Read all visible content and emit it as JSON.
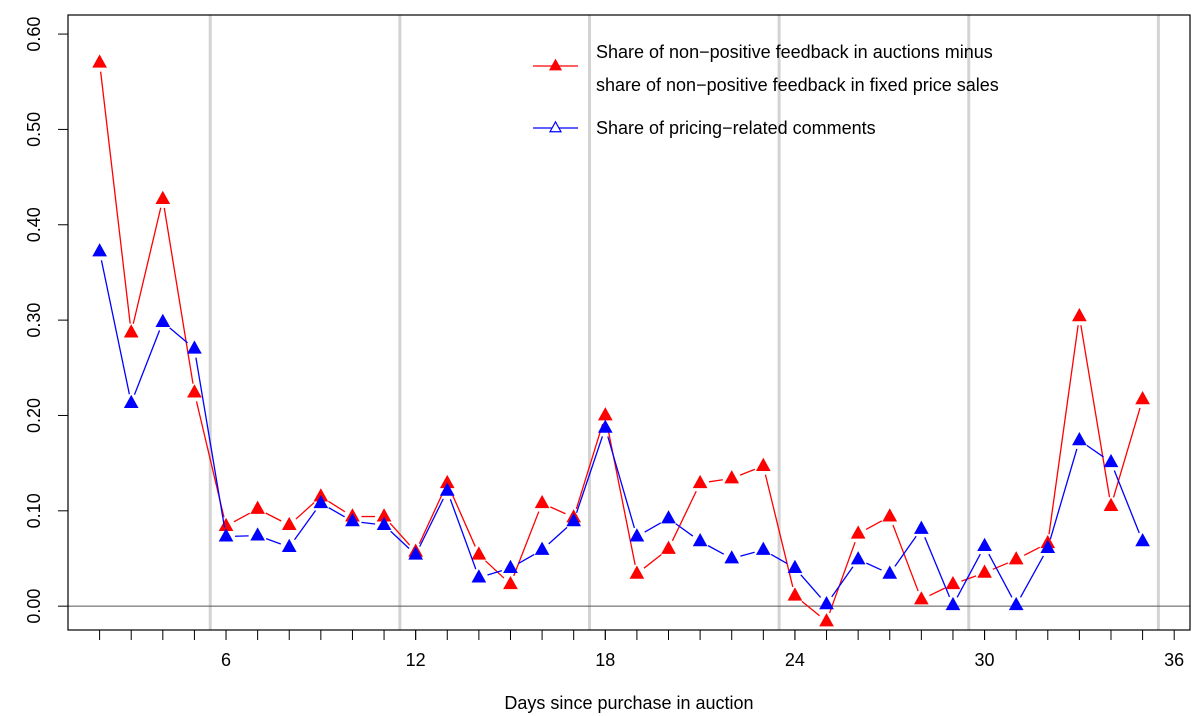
{
  "chart_data": {
    "type": "line",
    "xlabel": "Days since purchase in auction",
    "ylabel": "",
    "xlim": [
      1,
      36.5
    ],
    "ylim": [
      -0.025,
      0.62
    ],
    "x_ticks": [
      6,
      12,
      18,
      24,
      30,
      36
    ],
    "y_ticks": [
      0.0,
      0.1,
      0.2,
      0.3,
      0.4,
      0.5,
      0.6
    ],
    "y_tick_labels": [
      "0.00",
      "0.10",
      "0.20",
      "0.30",
      "0.40",
      "0.50",
      "0.60"
    ],
    "vertical_guides": [
      5.5,
      11.5,
      17.5,
      23.5,
      29.5,
      35.5
    ],
    "zero_line": 0,
    "legend_position": "top-right",
    "series": [
      {
        "name_lines": [
          "Share of non−positive feedback in auctions minus",
          "share of non−positive feedback in fixed price sales"
        ],
        "color": "#ff0000",
        "marker": "filled-triangle",
        "x": [
          2,
          3,
          4,
          5,
          6,
          7,
          8,
          9,
          10,
          11,
          12,
          13,
          14,
          15,
          16,
          17,
          18,
          19,
          20,
          21,
          22,
          23,
          24,
          25,
          26,
          27,
          28,
          29,
          30,
          31,
          32,
          33,
          34,
          35
        ],
        "values": [
          0.57,
          0.287,
          0.427,
          0.224,
          0.084,
          0.102,
          0.085,
          0.115,
          0.094,
          0.094,
          0.057,
          0.129,
          0.054,
          0.023,
          0.108,
          0.093,
          0.2,
          0.034,
          0.06,
          0.129,
          0.134,
          0.147,
          0.011,
          -0.016,
          0.076,
          0.094,
          0.007,
          0.023,
          0.035,
          0.049,
          0.066,
          0.304,
          0.105,
          0.217
        ]
      },
      {
        "name_lines": [
          "Share of pricing−related comments"
        ],
        "color": "#0000ff",
        "marker": "filled-triangle",
        "x": [
          2,
          3,
          4,
          5,
          6,
          7,
          8,
          9,
          10,
          11,
          12,
          13,
          14,
          15,
          16,
          17,
          18,
          19,
          20,
          21,
          22,
          23,
          24,
          25,
          26,
          27,
          28,
          29,
          30,
          31,
          32,
          33,
          34,
          35
        ],
        "values": [
          0.372,
          0.213,
          0.298,
          0.27,
          0.073,
          0.074,
          0.062,
          0.108,
          0.089,
          0.085,
          0.054,
          0.121,
          0.03,
          0.04,
          0.059,
          0.089,
          0.187,
          0.073,
          0.092,
          0.068,
          0.05,
          0.059,
          0.04,
          0.002,
          0.049,
          0.034,
          0.081,
          0.001,
          0.063,
          0.001,
          0.061,
          0.174,
          0.151,
          0.068
        ]
      }
    ]
  }
}
